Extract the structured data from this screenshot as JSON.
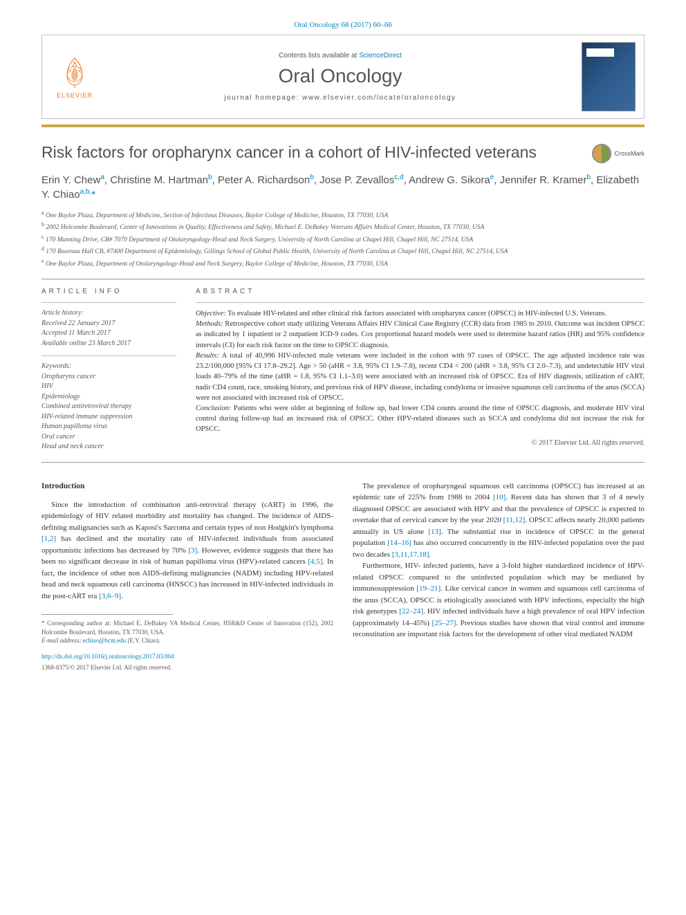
{
  "citation": "Oral Oncology 68 (2017) 60–66",
  "header": {
    "contents_prefix": "Contents lists available at ",
    "contents_link": "ScienceDirect",
    "journal": "Oral Oncology",
    "homepage_prefix": "journal homepage: ",
    "homepage_url": "www.elsevier.com/locate/oraloncology",
    "publisher_logo_text": "ELSEVIER"
  },
  "crossmark_label": "CrossMark",
  "title": "Risk factors for oropharynx cancer in a cohort of HIV-infected veterans",
  "authors_html": "Erin Y. Chew<sup>a</sup>, Christine M. Hartman<sup>b</sup>, Peter A. Richardson<sup>b</sup>, Jose P. Zevallos<sup>c,d</sup>, Andrew G. Sikora<sup>e</sup>, Jennifer R. Kramer<sup>b</sup>, Elizabeth Y. Chiao<sup>a,b,</sup><span class='star-sup'>*</span>",
  "affiliations": [
    "a One Baylor Plaza, Department of Medicine, Section of Infectious Diseases, Baylor College of Medicine, Houston, TX 77030, USA",
    "b 2002 Holcombe Boulevard, Center of Innovations in Quality, Effectiveness and Safety, Michael E. DeBakey Veterans Affairs Medical Center, Houston, TX 77030, USA",
    "c 170 Manning Drive, CB# 7070 Department of Otolaryngology-Head and Neck Surgery, University of North Carolina at Chapel Hill, Chapel Hill, NC 27514, USA",
    "d 170 Rosenau Hall CB, #7400 Department of Epidemiology, Gillings School of Global Public Health, University of North Carolina at Chapel Hill, Chapel Hill, NC 27514, USA",
    "e One Baylor Plaza, Department of Otolaryngology-Head and Neck Surgery, Baylor College of Medicine, Houston, TX 77030, USA"
  ],
  "article_info": {
    "heading": "ARTICLE INFO",
    "history_label": "Article history:",
    "received": "Received 22 January 2017",
    "accepted": "Accepted 11 March 2017",
    "online": "Available online 23 March 2017",
    "keywords_label": "Keywords:",
    "keywords": [
      "Oropharynx cancer",
      "HIV",
      "Epidemiology",
      "Combined antiretroviral therapy",
      "HIV-related immune suppression",
      "Human papilloma virus",
      "Oral cancer",
      "Head and neck cancer"
    ]
  },
  "abstract": {
    "heading": "ABSTRACT",
    "objective_label": "Objective:",
    "objective": " To evaluate HIV-related and other clinical risk factors associated with oropharynx cancer (OPSCC) in HIV-infected U.S. Veterans.",
    "methods_label": "Methods:",
    "methods": " Retrospective cohort study utilizing Veterans Affairs HIV Clinical Case Registry (CCR) data from 1985 to 2010. Outcome was incident OPSCC as indicated by 1 inpatient or 2 outpatient ICD-9 codes. Cox proportional hazard models were used to determine hazard ratios (HR) and 95% confidence intervals (CI) for each risk factor on the time to OPSCC diagnosis.",
    "results_label": "Results:",
    "results": " A total of 40,996 HIV-infected male veterans were included in the cohort with 97 cases of OPSCC. The age adjusted incidence rate was 23.2/100,000 [95% CI 17.8–29.2]. Age > 50 (aHR = 3.8, 95% CI 1.9–7.8), recent CD4 < 200 (aHR = 3.8, 95% CI 2.0–7.3), and undetectable HIV viral loads 40–79% of the time (aHR = 1.8, 95% CI 1.1–3.0) were associated with an increased risk of OPSCC. Era of HIV diagnosis, utilization of cART, nadir CD4 count, race, smoking history, and previous risk of HPV disease, including condyloma or invasive squamous cell carcinoma of the anus (SCCA) were not associated with increased risk of OPSCC.",
    "conclusion_label": "Conclusion:",
    "conclusion": " Patients who were older at beginning of follow up, had lower CD4 counts around the time of OPSCC diagnosis, and moderate HIV viral control during follow-up had an increased risk of OPSCC. Other HPV-related diseases such as SCCA and condyloma did not increase the risk for OPSCC.",
    "copyright": "© 2017 Elsevier Ltd. All rights reserved."
  },
  "body": {
    "intro_heading": "Introduction",
    "col1_p1": "Since the introduction of combination anti-retroviral therapy (cART) in 1996, the epidemiology of HIV related morbidity and mortality has changed. The incidence of AIDS-defining malignancies such as Kaposi's Sarcoma and certain types of non Hodgkin's lymphoma [1,2] has declined and the mortality rate of HIV-infected individuals from associated opportunistic infections has decreased by 70% [3]. However, evidence suggests that there has been no significant decrease in risk of human papilloma virus (HPV)-related cancers [4,5]. In fact, the incidence of other non AIDS-defining malignancies (NADM) including HPV-related head and neck squamous cell carcinoma (HNSCC) has increased in HIV-infected individuals in the post-cART era [3,6–9].",
    "col2_p1": "The prevalence of oropharyngeal squamous cell carcinoma (OPSCC) has increased at an epidemic rate of 225% from 1988 to 2004 [10]. Recent data has shown that 3 of 4 newly diagnosed OPSCC are associated with HPV and that the prevalence of OPSCC is expected to overtake that of cervical cancer by the year 2020 [11,12]. OPSCC affects nearly 20,000 patients annually in US alone [13]. The substantial rise in incidence of OPSCC in the general population [14–16] has also occurred concurrently in the HIV-infected population over the past two decades [3,11,17,18].",
    "col2_p2": "Furthermore, HIV- infected patients, have a 3-fold higher standardized incidence of HPV-related OPSCC compared to the uninfected population which may be mediated by immunosuppression [19–21]. Like cervical cancer in women and squamous cell carcinoma of the anus (SCCA), OPSCC is etiologically associated with HPV infections, especially the high risk genotypes [22–24]. HIV infected individuals have a high prevalence of oral HPV infection (approximately 14–45%) [25–27]. Previous studies have shown that viral control and immune reconstitution are important risk factors for the development of other viral mediated NADM"
  },
  "footnote": {
    "corresponding": "* Corresponding author at: Michael E. DeBakey VA Medical Center, HSR&D Center of Innovation (152), 2002 Holcombe Boulevard, Houston, TX 77030, USA.",
    "email_label": "E-mail address: ",
    "email": "echiao@bcm.edu",
    "email_suffix": " (E.Y. Chiao)."
  },
  "doi": "http://dx.doi.org/10.1016/j.oraloncology.2017.03.004",
  "issn": "1368-8375/© 2017 Elsevier Ltd. All rights reserved.",
  "colors": {
    "link": "#007db8",
    "elsevier_orange": "#e9711c",
    "gold": "#c9a84a",
    "text_gray": "#555555",
    "body_text": "#333333"
  }
}
